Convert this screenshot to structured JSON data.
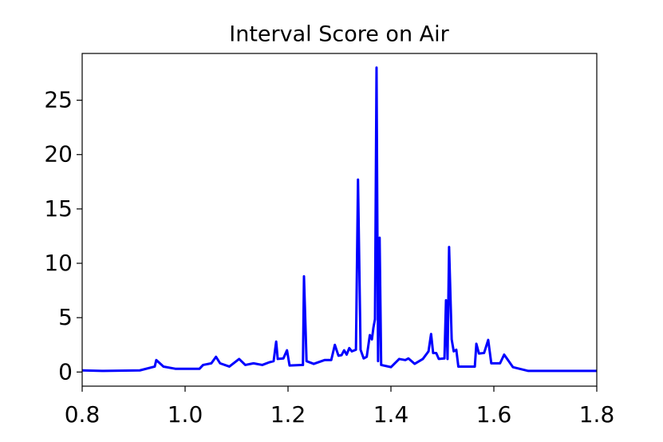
{
  "chart_data": {
    "type": "line",
    "title": "Interval Score on Air",
    "color": "#0000ff",
    "x": [
      0.8,
      0.842,
      0.912,
      0.941,
      0.944,
      0.958,
      0.981,
      1.028,
      1.035,
      1.051,
      1.06,
      1.068,
      1.086,
      1.105,
      1.117,
      1.133,
      1.15,
      1.164,
      1.172,
      1.177,
      1.18,
      1.191,
      1.198,
      1.203,
      1.229,
      1.231,
      1.236,
      1.25,
      1.271,
      1.284,
      1.291,
      1.298,
      1.304,
      1.309,
      1.314,
      1.319,
      1.324,
      1.332,
      1.336,
      1.341,
      1.347,
      1.353,
      1.359,
      1.363,
      1.366,
      1.369,
      1.372,
      1.375,
      1.378,
      1.381,
      1.4,
      1.416,
      1.428,
      1.434,
      1.446,
      1.462,
      1.473,
      1.478,
      1.482,
      1.488,
      1.493,
      1.504,
      1.507,
      1.51,
      1.513,
      1.518,
      1.522,
      1.527,
      1.531,
      1.563,
      1.566,
      1.571,
      1.581,
      1.589,
      1.595,
      1.612,
      1.62,
      1.637,
      1.667,
      1.8
    ],
    "values": [
      0.15,
      0.1,
      0.15,
      0.5,
      1.1,
      0.5,
      0.3,
      0.3,
      0.65,
      0.8,
      1.4,
      0.8,
      0.5,
      1.2,
      0.65,
      0.8,
      0.65,
      0.9,
      1.0,
      2.8,
      1.2,
      1.25,
      2.0,
      0.6,
      0.65,
      8.8,
      1.0,
      0.75,
      1.1,
      1.1,
      2.5,
      1.5,
      1.55,
      2.0,
      1.6,
      2.2,
      1.9,
      2.05,
      17.7,
      2.05,
      1.25,
      1.4,
      3.4,
      3.0,
      4.1,
      4.85,
      28.0,
      1.0,
      12.35,
      0.65,
      0.45,
      1.2,
      1.1,
      1.25,
      0.75,
      1.2,
      1.9,
      3.5,
      1.75,
      1.75,
      1.2,
      1.25,
      6.6,
      1.2,
      11.5,
      3.0,
      1.9,
      2.05,
      0.5,
      0.5,
      2.6,
      1.7,
      1.75,
      2.95,
      0.8,
      0.8,
      1.6,
      0.45,
      0.1,
      0.1
    ],
    "xlim": [
      0.8,
      1.8
    ],
    "xticks": [
      0.8,
      {
        "value": 1.0,
        "label": "1.0"
      },
      1.2,
      1.4,
      1.6,
      1.8
    ],
    "ylim": [
      -1.3,
      29.3
    ],
    "yticks": [
      0,
      5,
      10,
      15,
      20,
      25
    ]
  }
}
